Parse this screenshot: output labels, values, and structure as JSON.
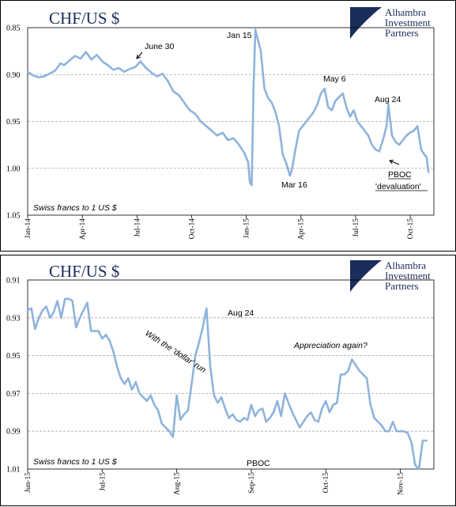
{
  "brand": {
    "lines": [
      "Alhambra",
      "Investment",
      "Partners"
    ],
    "color": "#1b2d5b",
    "logo_icon": "alhambra-logo-icon"
  },
  "colors": {
    "series": "#8fb3dc",
    "text": "#1b2d5b"
  },
  "chart_data": [
    {
      "type": "line",
      "title": "CHF/US $",
      "note": "Swiss francs to 1 US $",
      "y_inverted": true,
      "ylim": [
        0.85,
        1.05
      ],
      "yticks": [
        "0.85",
        "0.90",
        "0.95",
        "1.00",
        "1.05"
      ],
      "xticks": [
        "Jan-14",
        "Apr-14",
        "Jul-14",
        "Oct-14",
        "Jan-15",
        "Apr-15",
        "Jul-15",
        "Oct-15"
      ],
      "grid": true,
      "annotations": [
        {
          "text": "June 30",
          "x": 6.0,
          "y": 0.886
        },
        {
          "text": "Jan 15",
          "x": 12.5,
          "y": 0.852
        },
        {
          "text": "Mar 16",
          "x": 14.5,
          "y": 1.008
        },
        {
          "text": "May 6",
          "x": 16.2,
          "y": 0.914
        },
        {
          "text": "Aug 24",
          "x": 19.8,
          "y": 0.932
        },
        {
          "text": "PBOC",
          "x": 19.4,
          "y": 0.98
        },
        {
          "text": "'devaluation'",
          "x": 19.4,
          "y": 0.98
        }
      ],
      "x": [
        0,
        0.3,
        0.6,
        0.9,
        1.2,
        1.5,
        1.8,
        2.0,
        2.3,
        2.6,
        2.9,
        3.2,
        3.5,
        3.8,
        4.1,
        4.4,
        4.7,
        5.0,
        5.3,
        5.6,
        5.9,
        6.2,
        6.5,
        6.8,
        7.1,
        7.4,
        7.7,
        8.0,
        8.3,
        8.6,
        8.9,
        9.2,
        9.5,
        9.8,
        10.1,
        10.4,
        10.7,
        11.0,
        11.3,
        11.6,
        11.9,
        12.1,
        12.2,
        12.3,
        12.4,
        12.5,
        12.6,
        12.8,
        13.0,
        13.2,
        13.4,
        13.6,
        13.8,
        14.0,
        14.2,
        14.4,
        14.5,
        14.7,
        14.9,
        15.1,
        15.3,
        15.5,
        15.7,
        15.9,
        16.1,
        16.3,
        16.5,
        16.7,
        16.9,
        17.1,
        17.3,
        17.5,
        17.7,
        17.9,
        18.1,
        18.3,
        18.5,
        18.7,
        18.9,
        19.1,
        19.3,
        19.5,
        19.7,
        19.8,
        20.0,
        20.2,
        20.4,
        20.6,
        20.8,
        21.0,
        21.2,
        21.4,
        21.6,
        21.8,
        21.9,
        22.0
      ],
      "values": [
        0.897,
        0.901,
        0.903,
        0.902,
        0.899,
        0.896,
        0.888,
        0.89,
        0.885,
        0.88,
        0.883,
        0.876,
        0.884,
        0.879,
        0.886,
        0.89,
        0.895,
        0.893,
        0.897,
        0.894,
        0.892,
        0.886,
        0.893,
        0.898,
        0.902,
        0.899,
        0.907,
        0.918,
        0.922,
        0.93,
        0.938,
        0.942,
        0.95,
        0.955,
        0.96,
        0.965,
        0.962,
        0.97,
        0.968,
        0.975,
        0.984,
        0.993,
        1.015,
        1.018,
        0.915,
        0.852,
        0.86,
        0.875,
        0.915,
        0.925,
        0.93,
        0.94,
        0.955,
        0.985,
        0.995,
        1.008,
        1.002,
        0.98,
        0.96,
        0.955,
        0.95,
        0.945,
        0.94,
        0.932,
        0.92,
        0.915,
        0.935,
        0.938,
        0.928,
        0.924,
        0.92,
        0.935,
        0.945,
        0.938,
        0.95,
        0.955,
        0.96,
        0.965,
        0.975,
        0.98,
        0.982,
        0.97,
        0.955,
        0.932,
        0.965,
        0.972,
        0.975,
        0.97,
        0.965,
        0.962,
        0.96,
        0.955,
        0.98,
        0.986,
        0.988,
        1.004
      ]
    },
    {
      "type": "line",
      "title": "CHF/US $",
      "note": "Swiss francs to 1 US $",
      "y_inverted": true,
      "ylim": [
        0.91,
        1.01
      ],
      "yticks": [
        "0.91",
        "0.93",
        "0.95",
        "0.97",
        "0.99",
        "1.01"
      ],
      "xticks": [
        "Jun-15",
        "Jul-15",
        "Aug-15",
        "Sep-15",
        "Oct-15",
        "Nov-15"
      ],
      "grid": true,
      "annotations": [
        {
          "text": "Aug 24",
          "x": 2.45,
          "y": 0.925
        },
        {
          "text": "With the 'dollar' run",
          "x": 1.5,
          "y": 0.945
        },
        {
          "text": "Appreciation again?",
          "x": 3.4,
          "y": 0.951
        },
        {
          "text": "PBOC",
          "x": 2.45,
          "y": 1.005
        }
      ],
      "x": [
        0,
        0.05,
        0.1,
        0.15,
        0.2,
        0.25,
        0.3,
        0.35,
        0.4,
        0.45,
        0.5,
        0.55,
        0.6,
        0.65,
        0.7,
        0.75,
        0.8,
        0.85,
        0.9,
        0.95,
        1.0,
        1.05,
        1.1,
        1.15,
        1.2,
        1.25,
        1.3,
        1.35,
        1.4,
        1.45,
        1.5,
        1.55,
        1.6,
        1.65,
        1.7,
        1.75,
        1.8,
        1.85,
        1.9,
        1.95,
        2.0,
        2.05,
        2.1,
        2.15,
        2.2,
        2.25,
        2.3,
        2.35,
        2.4,
        2.45,
        2.5,
        2.55,
        2.6,
        2.65,
        2.7,
        2.75,
        2.8,
        2.85,
        2.9,
        2.95,
        3.0,
        3.05,
        3.1,
        3.15,
        3.2,
        3.25,
        3.3,
        3.35,
        3.4,
        3.45,
        3.5,
        3.55,
        3.6,
        3.65,
        3.7,
        3.75,
        3.8,
        3.85,
        3.9,
        3.95,
        4.0,
        4.05,
        4.1,
        4.15,
        4.2,
        4.25,
        4.3,
        4.35,
        4.4,
        4.45,
        4.5,
        4.55,
        4.6,
        4.65,
        4.7,
        4.75,
        4.8,
        4.85,
        4.9,
        4.95,
        5.0,
        5.05,
        5.1,
        5.15,
        5.2,
        5.25,
        5.3,
        5.35
      ],
      "values": [
        0.926,
        0.925,
        0.936,
        0.93,
        0.926,
        0.924,
        0.93,
        0.927,
        0.921,
        0.93,
        0.92,
        0.92,
        0.921,
        0.935,
        0.93,
        0.926,
        0.922,
        0.937,
        0.937,
        0.937,
        0.941,
        0.939,
        0.942,
        0.948,
        0.956,
        0.962,
        0.965,
        0.962,
        0.968,
        0.964,
        0.97,
        0.972,
        0.974,
        0.971,
        0.976,
        0.979,
        0.986,
        0.988,
        0.99,
        0.993,
        0.971,
        0.984,
        0.981,
        0.979,
        0.965,
        0.95,
        0.943,
        0.935,
        0.925,
        0.956,
        0.971,
        0.975,
        0.972,
        0.978,
        0.983,
        0.981,
        0.984,
        0.985,
        0.983,
        0.984,
        0.976,
        0.982,
        0.979,
        0.978,
        0.985,
        0.983,
        0.98,
        0.974,
        0.982,
        0.97,
        0.975,
        0.98,
        0.984,
        0.988,
        0.985,
        0.982,
        0.98,
        0.984,
        0.985,
        0.978,
        0.974,
        0.98,
        0.976,
        0.975,
        0.96,
        0.96,
        0.958,
        0.952,
        0.955,
        0.958,
        0.96,
        0.962,
        0.976,
        0.983,
        0.985,
        0.987,
        0.99,
        0.99,
        0.985,
        0.99,
        0.99,
        0.99,
        0.991,
        0.996,
        1.008,
        1.01,
        0.995,
        0.995
      ]
    }
  ]
}
